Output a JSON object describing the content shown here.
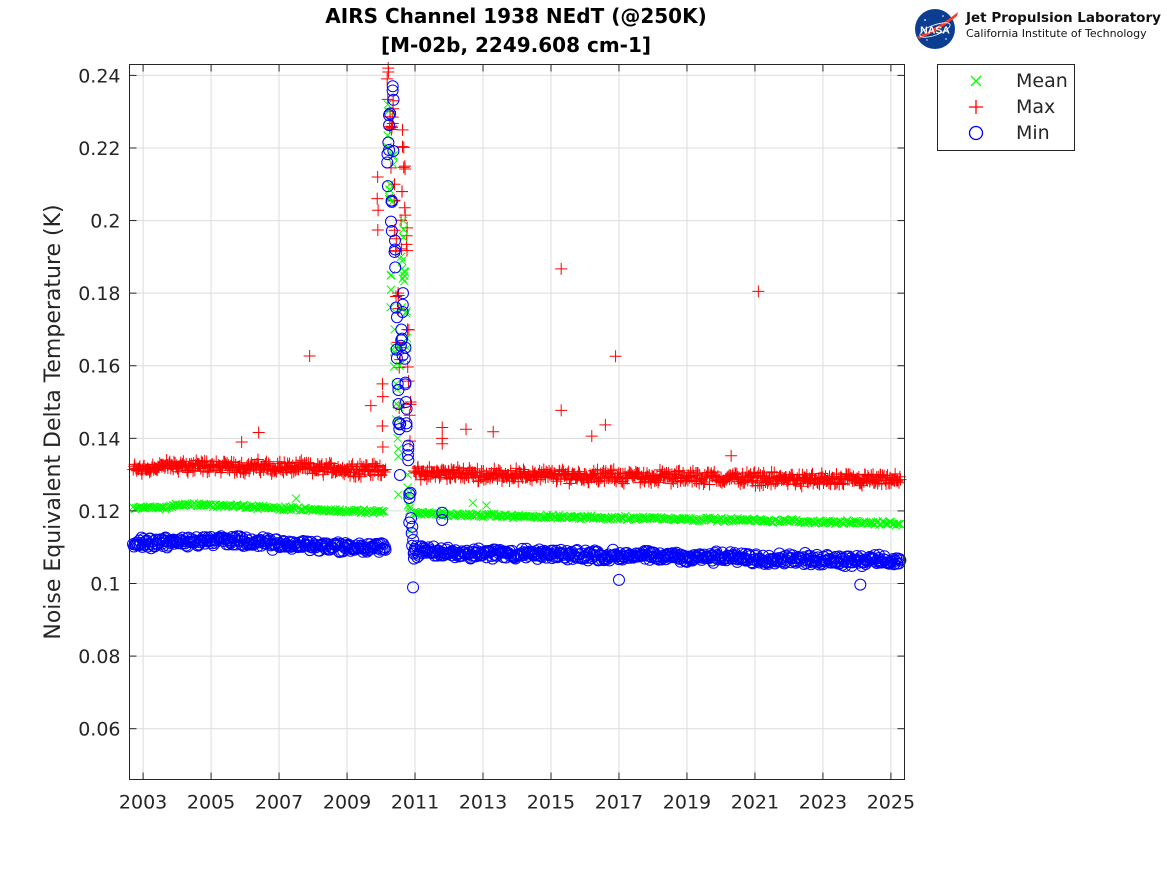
{
  "chart_data": {
    "type": "scatter",
    "title": "AIRS Channel 1938 NEdT (@250K)",
    "subtitle": "[M-02b, 2249.608 cm-1]",
    "xlabel": "",
    "ylabel": "Noise Equivalent Delta Temperature (K)",
    "xlim": [
      2002.6,
      2025.4
    ],
    "ylim": [
      0.046,
      0.243
    ],
    "xticks": [
      "2003",
      "2005",
      "2007",
      "2009",
      "2011",
      "2013",
      "2015",
      "2017",
      "2019",
      "2021",
      "2023",
      "2025"
    ],
    "yticks": [
      "0.06",
      "0.08",
      "0.1",
      "0.12",
      "0.14",
      "0.16",
      "0.18",
      "0.2",
      "0.22",
      "0.24"
    ],
    "grid": true,
    "legend_position": "outside-right",
    "series": [
      {
        "name": "Mean",
        "marker": "x",
        "color": "#00ff00",
        "trend": [
          [
            2002.7,
            0.1208
          ],
          [
            2003.7,
            0.121
          ],
          [
            2004.0,
            0.1218
          ],
          [
            2005.0,
            0.1216
          ],
          [
            2006.0,
            0.1212
          ],
          [
            2007.0,
            0.1208
          ],
          [
            2008.0,
            0.1203
          ],
          [
            2009.0,
            0.12
          ],
          [
            2010.1,
            0.1198
          ],
          [
            2010.9,
            0.1195
          ],
          [
            2012.0,
            0.119
          ],
          [
            2014.0,
            0.1185
          ],
          [
            2016.0,
            0.1182
          ],
          [
            2018.0,
            0.118
          ],
          [
            2020.0,
            0.1176
          ],
          [
            2022.0,
            0.1172
          ],
          [
            2024.0,
            0.1168
          ],
          [
            2025.3,
            0.1165
          ]
        ],
        "spike": [
          [
            2010.2,
            0.232
          ],
          [
            2010.25,
            0.21
          ],
          [
            2010.3,
            0.185
          ],
          [
            2010.35,
            0.218
          ],
          [
            2010.4,
            0.17
          ],
          [
            2010.45,
            0.155
          ],
          [
            2010.5,
            0.14
          ],
          [
            2010.55,
            0.165
          ],
          [
            2010.6,
            0.19
          ],
          [
            2010.65,
            0.2
          ],
          [
            2010.7,
            0.186
          ],
          [
            2010.75,
            0.175
          ],
          [
            2010.8,
            0.13
          ],
          [
            2010.85,
            0.125
          ]
        ],
        "outliers": [
          [
            2007.5,
            0.1234
          ],
          [
            2012.7,
            0.1222
          ],
          [
            2013.1,
            0.1215
          ],
          [
            2011.8,
            0.12
          ]
        ]
      },
      {
        "name": "Max",
        "marker": "+",
        "color": "#ff0000",
        "trend": [
          [
            2002.7,
            0.1315
          ],
          [
            2004.0,
            0.1325
          ],
          [
            2006.0,
            0.1322
          ],
          [
            2008.0,
            0.1318
          ],
          [
            2010.1,
            0.1312
          ],
          [
            2011.0,
            0.1305
          ],
          [
            2013.0,
            0.13
          ],
          [
            2015.0,
            0.1298
          ],
          [
            2017.0,
            0.1295
          ],
          [
            2019.0,
            0.1293
          ],
          [
            2021.0,
            0.129
          ],
          [
            2023.0,
            0.1285
          ],
          [
            2025.3,
            0.1283
          ]
        ],
        "spike": [
          [
            2010.2,
            0.242
          ],
          [
            2010.25,
            0.23
          ],
          [
            2010.3,
            0.226
          ],
          [
            2010.35,
            0.233
          ],
          [
            2010.4,
            0.21
          ],
          [
            2010.45,
            0.195
          ],
          [
            2010.5,
            0.18
          ],
          [
            2010.55,
            0.165
          ],
          [
            2010.6,
            0.208
          ],
          [
            2010.65,
            0.225
          ],
          [
            2010.7,
            0.215
          ],
          [
            2010.75,
            0.198
          ],
          [
            2010.8,
            0.17
          ],
          [
            2010.85,
            0.15
          ],
          [
            2009.9,
            0.212
          ],
          [
            2010.05,
            0.155
          ]
        ],
        "outliers": [
          [
            2007.9,
            0.1627
          ],
          [
            2015.3,
            0.1867
          ],
          [
            2016.9,
            0.1626
          ],
          [
            2021.1,
            0.1805
          ],
          [
            2006.4,
            0.1416
          ],
          [
            2005.9,
            0.139
          ],
          [
            2009.7,
            0.149
          ],
          [
            2015.3,
            0.1477
          ],
          [
            2016.2,
            0.1406
          ],
          [
            2016.6,
            0.1437
          ],
          [
            2013.3,
            0.1418
          ],
          [
            2012.5,
            0.1425
          ],
          [
            2011.8,
            0.143
          ],
          [
            2011.8,
            0.14
          ],
          [
            2011.8,
            0.1385
          ],
          [
            2020.3,
            0.1352
          ]
        ]
      },
      {
        "name": "Min",
        "marker": "o",
        "color": "#0000ff",
        "trend": [
          [
            2002.7,
            0.111
          ],
          [
            2004.0,
            0.1115
          ],
          [
            2005.0,
            0.112
          ],
          [
            2006.0,
            0.1115
          ],
          [
            2007.0,
            0.1108
          ],
          [
            2008.0,
            0.1105
          ],
          [
            2009.0,
            0.11
          ],
          [
            2010.1,
            0.1098
          ],
          [
            2011.0,
            0.109
          ],
          [
            2012.0,
            0.1085
          ],
          [
            2014.0,
            0.1082
          ],
          [
            2016.0,
            0.1078
          ],
          [
            2018.0,
            0.1075
          ],
          [
            2020.0,
            0.1072
          ],
          [
            2022.0,
            0.1068
          ],
          [
            2024.0,
            0.1065
          ],
          [
            2025.3,
            0.1063
          ]
        ],
        "spike": [
          [
            2010.2,
            0.2215
          ],
          [
            2010.25,
            0.2295
          ],
          [
            2010.3,
            0.2055
          ],
          [
            2010.35,
            0.237
          ],
          [
            2010.4,
            0.1945
          ],
          [
            2010.45,
            0.176
          ],
          [
            2010.5,
            0.155
          ],
          [
            2010.55,
            0.144
          ],
          [
            2010.6,
            0.17
          ],
          [
            2010.65,
            0.18
          ],
          [
            2010.7,
            0.165
          ],
          [
            2010.75,
            0.15
          ],
          [
            2010.8,
            0.138
          ],
          [
            2010.85,
            0.125
          ],
          [
            2010.9,
            0.118
          ],
          [
            2010.95,
            0.112
          ]
        ],
        "outliers": [
          [
            2017.0,
            0.101
          ],
          [
            2024.1,
            0.0997
          ],
          [
            2011.8,
            0.1195
          ],
          [
            2011.8,
            0.1175
          ]
        ]
      }
    ]
  },
  "logo": {
    "badge": "NASA",
    "line1": "Jet Propulsion Laboratory",
    "line2": "California Institute of Technology"
  }
}
